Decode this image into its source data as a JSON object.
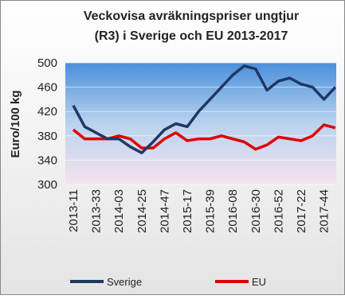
{
  "chart_data": {
    "type": "line",
    "title": [
      "Veckovisa avräkningspriser ungtjur",
      "(R3) i Sverige och EU 2013-2017"
    ],
    "y_label": "Euro/100 kg",
    "categories": [
      "2013-11",
      null,
      "2013-33",
      null,
      "2014-03",
      null,
      "2014-25",
      null,
      "2014-47",
      null,
      "2015-17",
      null,
      "2015-39",
      null,
      "2016-08",
      null,
      "2016-30",
      null,
      "2016-52",
      null,
      "2017-22",
      null,
      "2017-44",
      null
    ],
    "series": [
      {
        "name": "Sverige",
        "color": "#1f3864",
        "values": [
          430,
          395,
          385,
          375,
          375,
          362,
          352,
          370,
          390,
          400,
          395,
          420,
          440,
          460,
          480,
          495,
          490,
          455,
          470,
          475,
          465,
          460,
          440,
          460
        ]
      },
      {
        "name": "EU",
        "color": "#e00000",
        "values": [
          390,
          375,
          375,
          375,
          380,
          375,
          360,
          360,
          375,
          385,
          372,
          375,
          375,
          380,
          375,
          370,
          358,
          365,
          378,
          375,
          372,
          380,
          398,
          393
        ]
      }
    ],
    "ylim": [
      300,
      500
    ],
    "yticks": [
      300,
      340,
      380,
      420,
      460,
      500
    ],
    "grid": true
  }
}
